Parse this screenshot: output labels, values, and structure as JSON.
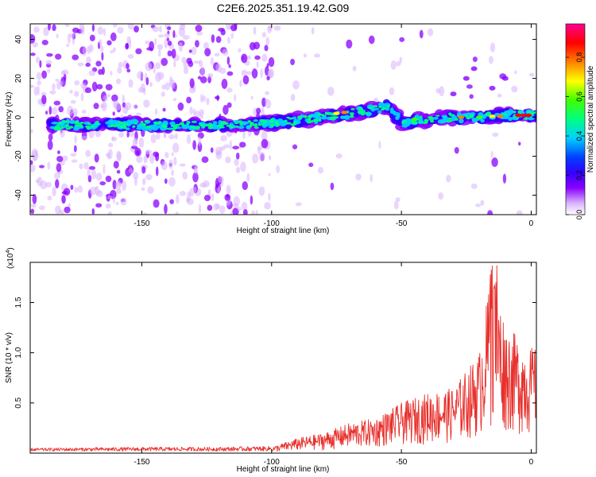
{
  "title": "C2E6.2025.351.19.42.G09",
  "chart_data": [
    {
      "type": "heatmap",
      "xlabel": "Height of straight line (km)",
      "ylabel": "Frequency (Hz)",
      "xlim": [
        -193,
        2
      ],
      "ylim": [
        -50,
        48
      ],
      "x_ticks": [
        -150,
        -100,
        -50,
        0
      ],
      "y_ticks": [
        -40,
        -20,
        0,
        20,
        40
      ],
      "colorbar": {
        "label": "Normalized spectral amplitude",
        "range": [
          0,
          0.97
        ],
        "ticks": [
          0.0,
          0.2,
          0.4,
          0.6,
          0.8
        ],
        "colormap": [
          "#ffffff",
          "#d9b3ff",
          "#8a00ff",
          "#3300ff",
          "#0040ff",
          "#00d0ff",
          "#00ff80",
          "#40ff00",
          "#ffff00",
          "#ff8000",
          "#ff0000",
          "#ff0090"
        ]
      },
      "ridge": {
        "description_points_x": [
          -193,
          -180,
          -160,
          -140,
          -120,
          -100,
          -80,
          -60,
          -55,
          -50,
          -40,
          -30,
          -20,
          -10,
          0,
          2
        ],
        "description_points_y": [
          -5,
          -4,
          -4,
          -4,
          -4,
          -3,
          0,
          4,
          6,
          -3,
          -1,
          0,
          0,
          1,
          1,
          1
        ]
      }
    },
    {
      "type": "line",
      "xlabel": "Height of straight line (km)",
      "ylabel": "SNR (10 * v/v)",
      "y_multiplier": "(x10⁴)",
      "xlim": [
        -193,
        2
      ],
      "ylim": [
        0,
        1.9
      ],
      "x_ticks": [
        -150,
        -100,
        -50,
        0
      ],
      "y_ticks": [
        0.5,
        1.0,
        1.5
      ],
      "series": [
        {
          "color": "#e8302c",
          "envelope_x": [
            -193,
            -150,
            -120,
            -100,
            -90,
            -80,
            -70,
            -60,
            -50,
            -40,
            -30,
            -20,
            -15,
            -10,
            -5,
            0,
            2
          ],
          "envelope_y": [
            0.04,
            0.05,
            0.05,
            0.06,
            0.15,
            0.2,
            0.3,
            0.35,
            0.5,
            0.6,
            0.65,
            1.0,
            1.9,
            1.3,
            1.15,
            1.05,
            1.1
          ]
        }
      ]
    }
  ],
  "labels": {
    "top_xlabel": "Height of straight line (km)",
    "top_ylabel": "Frequency (Hz)",
    "bottom_xlabel": "Height of straight line (km)",
    "bottom_ylabel": "SNR (10 * v/v)",
    "bottom_multiplier": "(x10",
    "bottom_multiplier_exp": "4",
    "bottom_multiplier_close": ")",
    "colorbar_label": "Normalized spectral amplitude"
  }
}
